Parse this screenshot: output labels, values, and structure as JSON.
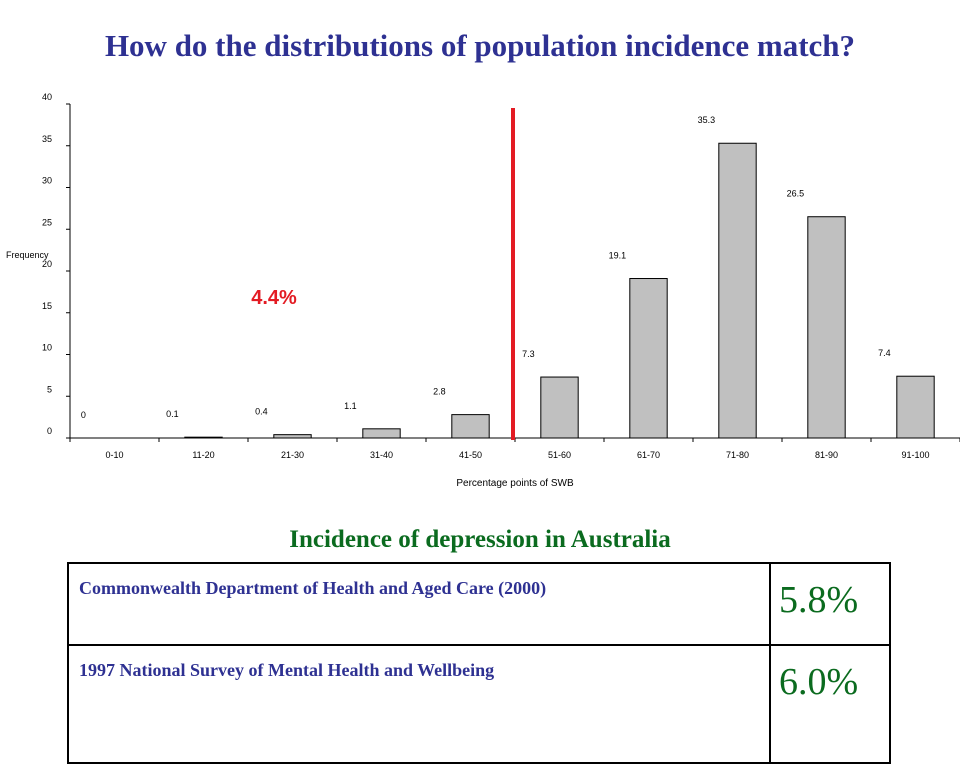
{
  "title": "How do the distributions of population incidence match?",
  "chart_data": {
    "type": "bar",
    "categories": [
      "0-10",
      "11-20",
      "21-30",
      "31-40",
      "41-50",
      "51-60",
      "61-70",
      "71-80",
      "81-90",
      "91-100"
    ],
    "values": [
      0,
      0.1,
      0.4,
      1.1,
      2.8,
      7.3,
      19.1,
      35.3,
      26.5,
      7.4
    ],
    "value_labels": [
      "0",
      "0.1",
      "0.4",
      "1.1",
      "2.8",
      "7.3",
      "19.1",
      "35.3",
      "26.5",
      "7.4"
    ],
    "xlabel": "Percentage points of SWB",
    "ylabel": "Frequency",
    "ylim": [
      0,
      40
    ],
    "yticks": [
      0,
      5,
      10,
      15,
      20,
      25,
      30,
      35,
      40
    ],
    "bar_color": "#c0c0c0",
    "grid": false,
    "annotation": {
      "text": "4.4%",
      "color": "#e31b23"
    },
    "reference_line": {
      "between_categories": [
        "41-50",
        "51-60"
      ],
      "color": "#e31b23"
    }
  },
  "subtitle": "Incidence of depression in Australia",
  "table": {
    "rows": [
      {
        "source": "Commonwealth Department of Health and Aged Care (2000)",
        "value": "5.8%"
      },
      {
        "source": "1997 National Survey of Mental Health and Wellbeing",
        "value": "6.0%"
      }
    ]
  }
}
